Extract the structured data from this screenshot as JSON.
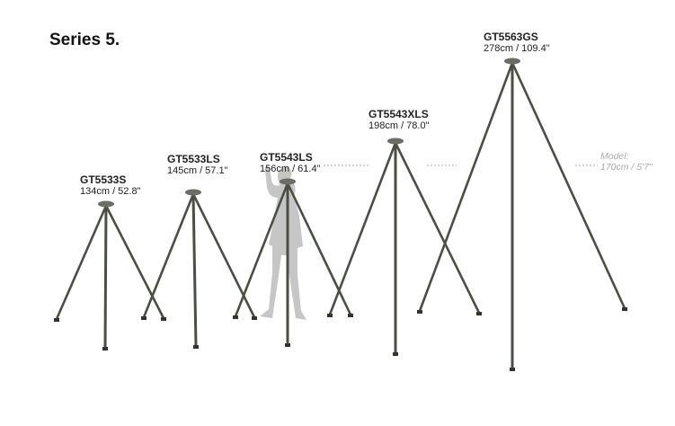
{
  "title": "Series 5.",
  "tripods": [
    {
      "name": "GT5533S",
      "size": "134cm / 52.8\""
    },
    {
      "name": "GT5533LS",
      "size": "145cm / 57.1\""
    },
    {
      "name": "GT5543LS",
      "size": "156cm / 61.4\""
    },
    {
      "name": "GT5543XLS",
      "size": "198cm / 78.0\""
    },
    {
      "name": "GT5563GS",
      "size": "278cm / 109.4\""
    }
  ],
  "model": {
    "label": "Model:",
    "height": "170cm / 5'7\""
  },
  "colors": {
    "leg": "#4a4f44",
    "silhouette": "#c4c4c4",
    "dash": "#aaaaaa"
  }
}
